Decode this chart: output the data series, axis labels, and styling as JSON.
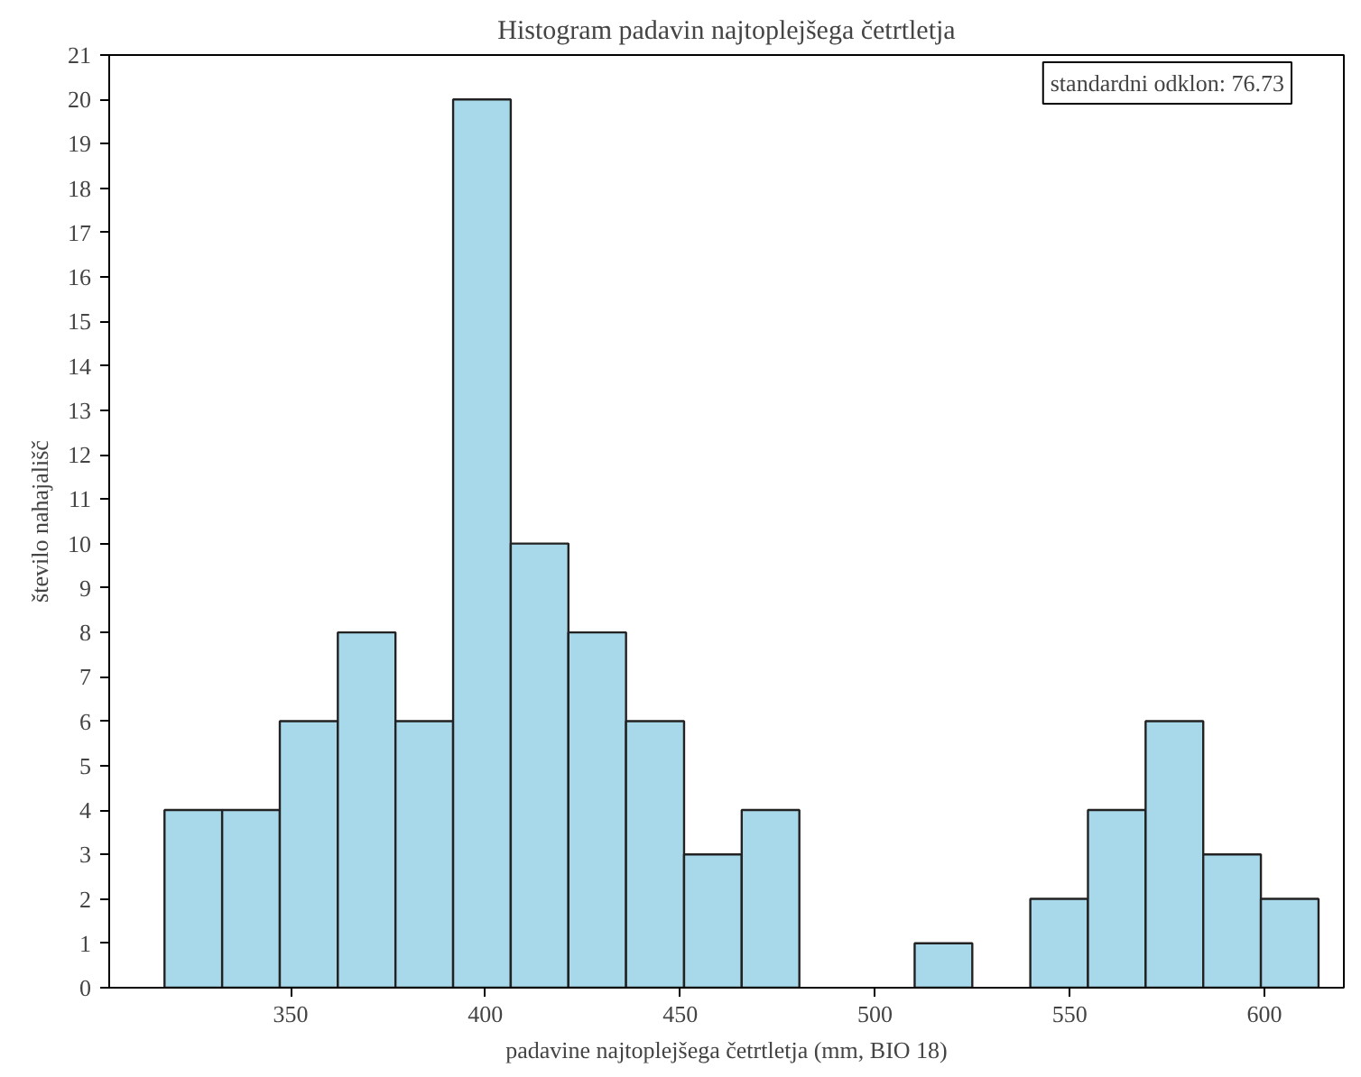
{
  "chart_data": {
    "type": "histogram",
    "title": "Histogram padavin najtoplejšega četrtletja",
    "xlabel": "padavine najtoplejšega četrtletja (mm, BIO 18)",
    "ylabel": "število nahajališč",
    "bins": [
      317.6,
      332.4,
      347.2,
      362.1,
      376.9,
      391.7,
      406.5,
      421.3,
      436.1,
      451.0,
      465.8,
      480.6,
      495.4,
      510.2,
      525.0,
      539.9,
      554.7,
      569.5,
      584.3,
      599.1,
      613.9
    ],
    "values": [
      4,
      4,
      6,
      8,
      6,
      20,
      10,
      8,
      6,
      3,
      4,
      0,
      0,
      1,
      0,
      2,
      4,
      6,
      3,
      2
    ],
    "color": "#a8d9eb",
    "xlim": [
      303.4,
      620.4
    ],
    "xticks": [
      350,
      400,
      450,
      500,
      550,
      600
    ],
    "ylim": [
      0,
      21
    ],
    "yticks": [
      0,
      1,
      2,
      3,
      4,
      5,
      6,
      7,
      8,
      9,
      10,
      11,
      12,
      13,
      14,
      15,
      16,
      17,
      18,
      19,
      20,
      21
    ],
    "grid": false,
    "annotations": [
      "standardni odklon: 76.73"
    ]
  }
}
